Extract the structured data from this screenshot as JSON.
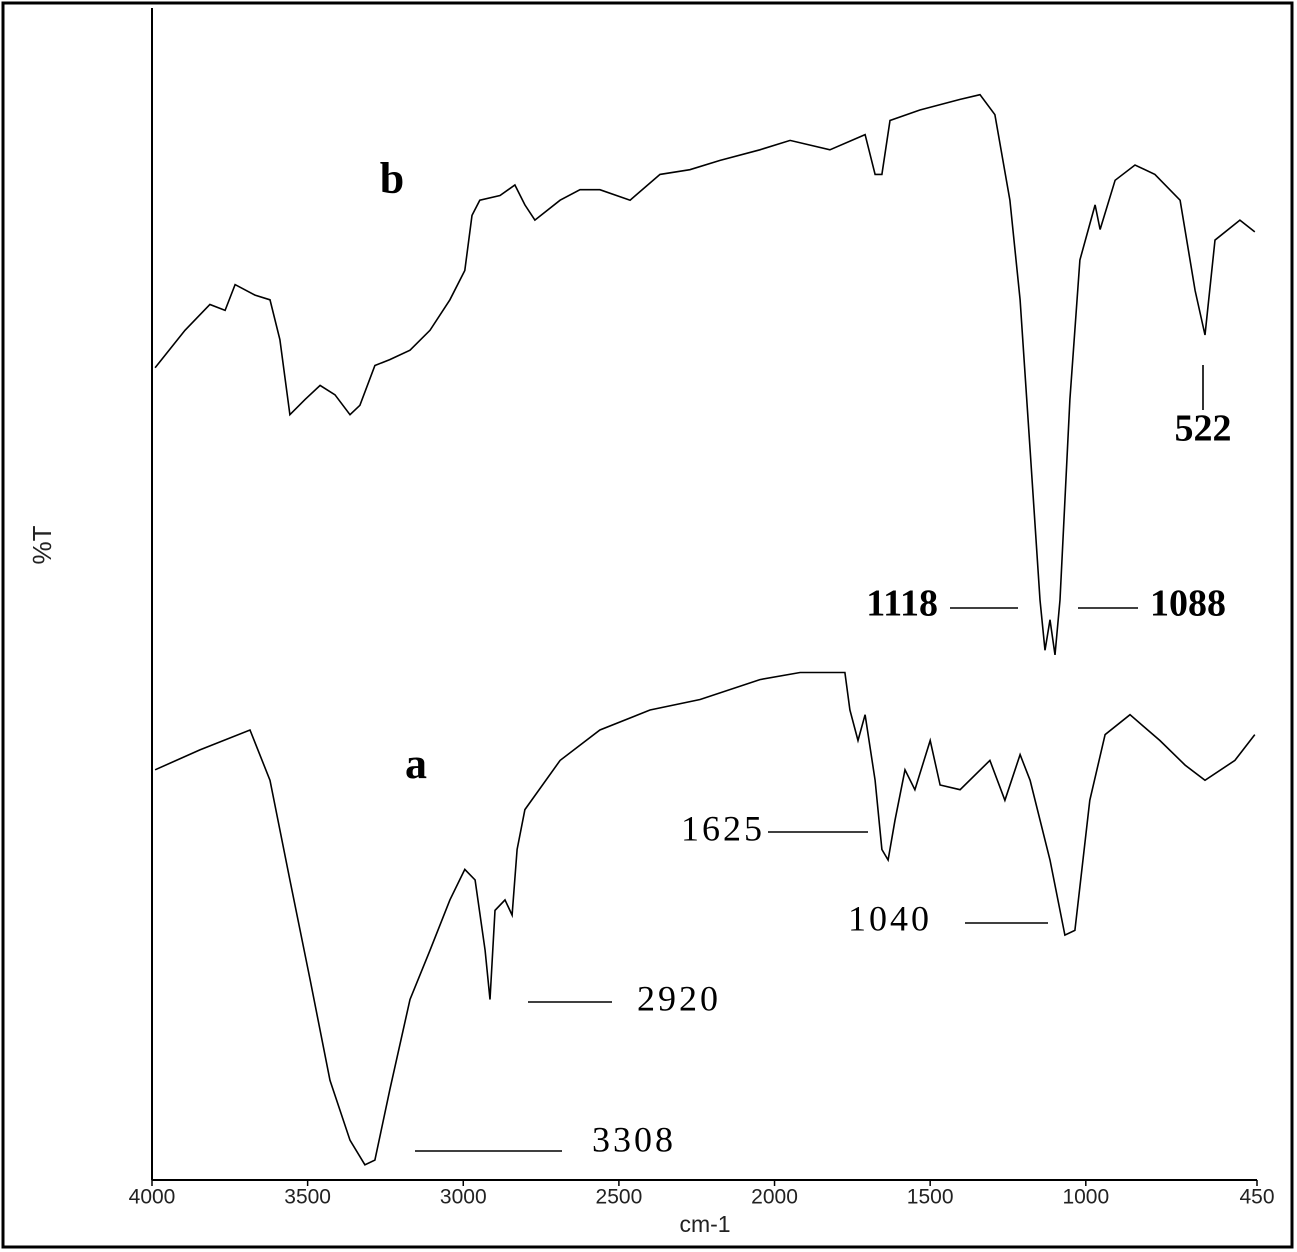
{
  "chart_data": {
    "type": "line",
    "xlabel": "cm-1",
    "ylabel": "%T",
    "xlim": [
      4000,
      450
    ],
    "ylim": [
      0,
      100
    ],
    "xticks": [
      4000,
      3500,
      3000,
      2500,
      2000,
      1500,
      1000,
      450
    ],
    "series": [
      {
        "name": "b",
        "color": "#000000",
        "x": [
          3990,
          3894,
          3814,
          3765,
          3733,
          3669,
          3621,
          3589,
          3557,
          3508,
          3460,
          3412,
          3364,
          3332,
          3284,
          3236,
          3171,
          3107,
          3043,
          2995,
          2972,
          2947,
          2882,
          2834,
          2802,
          2770,
          2689,
          2625,
          2561,
          2464,
          2368,
          2272,
          2175,
          2047,
          1950,
          1822,
          1709,
          1677,
          1655,
          1629,
          1533,
          1404,
          1340,
          1292,
          1244,
          1211,
          1179,
          1147,
          1131,
          1115,
          1099,
          1083,
          1051,
          1019,
          970,
          954,
          906,
          842,
          778,
          697,
          649,
          617,
          585,
          505,
          457
        ],
        "values": [
          69.3,
          72.5,
          74.7,
          74.2,
          76.4,
          75.5,
          75.1,
          71.7,
          65.3,
          66.6,
          67.8,
          67.0,
          65.3,
          66.1,
          69.5,
          70.0,
          70.8,
          72.5,
          75.1,
          77.6,
          82.3,
          83.6,
          84.0,
          84.9,
          83.2,
          81.9,
          83.6,
          84.5,
          84.5,
          83.6,
          85.8,
          86.2,
          87.0,
          87.9,
          88.7,
          87.9,
          89.2,
          85.8,
          85.8,
          90.4,
          91.3,
          92.2,
          92.6,
          90.9,
          83.6,
          75.1,
          62.3,
          49.5,
          45.2,
          47.8,
          44.8,
          49.5,
          66.6,
          78.5,
          83.2,
          81.1,
          85.3,
          86.6,
          85.8,
          83.6,
          75.9,
          72.1,
          80.2,
          81.9,
          80.9
        ]
      },
      {
        "name": "a",
        "color": "#000000",
        "x": [
          3990,
          3846,
          3685,
          3621,
          3557,
          3492,
          3428,
          3364,
          3316,
          3284,
          3236,
          3171,
          3107,
          3043,
          2995,
          2962,
          2930,
          2914,
          2898,
          2866,
          2843,
          2827,
          2802,
          2689,
          2561,
          2400,
          2239,
          2047,
          1918,
          1774,
          1758,
          1732,
          1709,
          1677,
          1655,
          1635,
          1613,
          1581,
          1549,
          1500,
          1468,
          1404,
          1308,
          1260,
          1211,
          1179,
          1115,
          1067,
          1035,
          987,
          938,
          858,
          762,
          681,
          617,
          521,
          457
        ],
        "values": [
          35.0,
          36.7,
          38.4,
          34.1,
          25.6,
          17.1,
          8.5,
          3.4,
          1.3,
          1.7,
          7.7,
          15.4,
          19.6,
          23.9,
          26.5,
          25.6,
          19.6,
          15.4,
          23.0,
          23.9,
          22.6,
          28.2,
          31.6,
          35.8,
          38.4,
          40.1,
          41.0,
          42.7,
          43.3,
          43.3,
          40.1,
          37.5,
          39.7,
          34.1,
          28.2,
          27.3,
          30.7,
          35.0,
          33.3,
          37.5,
          33.7,
          33.3,
          35.8,
          32.4,
          36.3,
          34.1,
          27.3,
          20.9,
          21.3,
          32.4,
          38.0,
          39.7,
          37.5,
          35.4,
          34.1,
          35.8,
          38.0
        ]
      }
    ],
    "annotations": [
      {
        "text": "522"
      },
      {
        "text": "1118"
      },
      {
        "text": "1088"
      },
      {
        "text": "1625"
      },
      {
        "text": "1040"
      },
      {
        "text": "2920"
      },
      {
        "text": "3308"
      }
    ]
  }
}
